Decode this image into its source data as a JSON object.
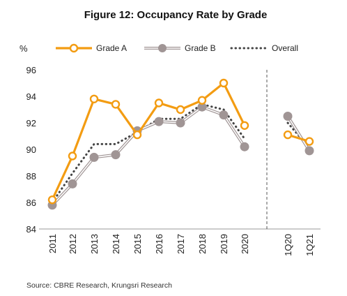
{
  "chart_data": {
    "type": "line",
    "title": "Figure 12: Occupancy Rate by Grade",
    "ylabel": "%",
    "ylim": [
      84,
      96
    ],
    "yticks": [
      84,
      86,
      88,
      90,
      92,
      94,
      96
    ],
    "categories": [
      "2011",
      "2012",
      "2013",
      "2014",
      "2015",
      "2016",
      "2017",
      "2018",
      "2019",
      "2020",
      "1Q20",
      "1Q21"
    ],
    "segments": [
      [
        0,
        9
      ],
      [
        10,
        11
      ]
    ],
    "series": [
      {
        "name": "Grade A",
        "color": "#F39C12",
        "style": "solid-open-marker",
        "values": [
          86.2,
          89.5,
          93.8,
          93.4,
          91.1,
          93.5,
          93.0,
          93.7,
          95.0,
          91.8,
          91.1,
          90.6
        ]
      },
      {
        "name": "Grade B",
        "color": "#A09595",
        "style": "double-filled-marker",
        "values": [
          85.8,
          87.4,
          89.4,
          89.6,
          91.4,
          92.1,
          92.0,
          93.2,
          92.6,
          90.2,
          92.5,
          89.9
        ]
      },
      {
        "name": "Overall",
        "color": "#444444",
        "style": "dotted",
        "values": [
          86.0,
          88.2,
          90.4,
          90.4,
          91.3,
          92.3,
          92.3,
          93.4,
          93.0,
          90.8,
          92.0,
          90.1
        ]
      }
    ],
    "legend_position": "top",
    "grid": false,
    "source": "Source: CBRE Research, Krungsri Research"
  }
}
